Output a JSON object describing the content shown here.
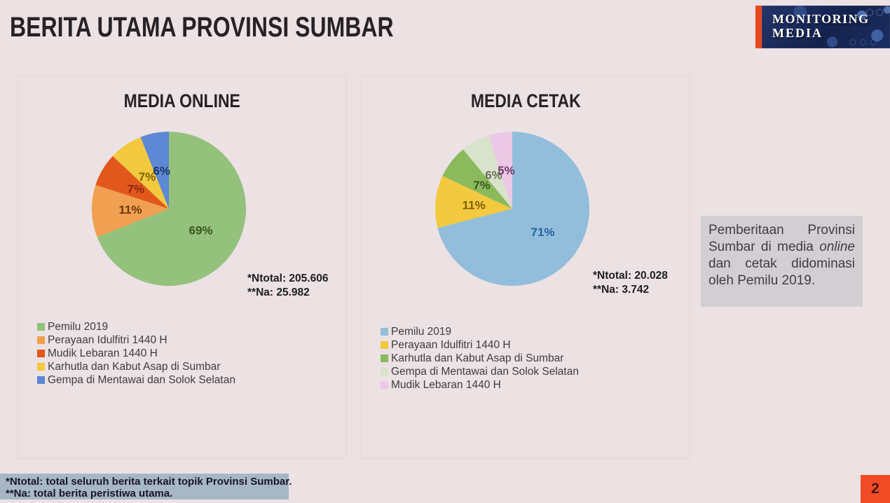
{
  "page": {
    "title": "BERITA UTAMA PROVINSI SUMBAR",
    "page_number": "2",
    "background_color": "#ECE1E3"
  },
  "logo": {
    "line1": "MONITORING",
    "line2": "MEDIA",
    "bar_color": "#E8481E",
    "bg_color": "#1B2F63"
  },
  "chart_data": [
    {
      "type": "pie",
      "title": "MEDIA ONLINE",
      "labels": [
        "Pemilu 2019",
        "Perayaan Idulfitri 1440 H",
        "Mudik Lebaran 1440 H",
        "Karhutla dan Kabut Asap di Sumbar",
        "Gempa di Mentawai dan Solok Selatan"
      ],
      "values": [
        69,
        11,
        7,
        7,
        6
      ],
      "unit": "%",
      "colors": [
        "#94C17C",
        "#F0A050",
        "#E2581C",
        "#F2C93F",
        "#5C88D4"
      ],
      "label_colors": [
        "#3A571E",
        "#6E3910",
        "#8C2510",
        "#7F6000",
        "#1F3864"
      ],
      "start_angle": 0,
      "direction": "clockwise",
      "legend_position": "bottom-left",
      "notes": [
        "*Ntotal: 205.606",
        "**Na: 25.982"
      ]
    },
    {
      "type": "pie",
      "title": "MEDIA CETAK",
      "labels": [
        "Pemilu 2019",
        "Perayaan Idulfitri 1440 H",
        "Karhutla dan Kabut Asap di Sumbar",
        "Gempa di Mentawai dan Solok Selatan",
        "Mudik Lebaran 1440 H"
      ],
      "values": [
        71,
        11,
        7,
        6,
        5
      ],
      "unit": "%",
      "colors": [
        "#92BEDC",
        "#F2C93F",
        "#8BBA5D",
        "#D9E2CB",
        "#EBC9E6"
      ],
      "label_colors": [
        "#27639C",
        "#7F6000",
        "#3A571E",
        "#68705C",
        "#6F3A6B"
      ],
      "start_angle": 0,
      "direction": "clockwise",
      "legend_position": "bottom-left",
      "notes": [
        "*Ntotal: 20.028",
        "**Na: 3.742"
      ]
    }
  ],
  "annotation": {
    "part1": "Pemberitaan Provinsi Sumbar di media ",
    "italic": "online",
    "part2": " dan cetak didominasi oleh Pemilu 2019."
  },
  "footnotes": {
    "line1": "*Ntotal: total seluruh berita terkait topik Provinsi Sumbar.",
    "line2": "**Na: total berita peristiwa utama."
  }
}
